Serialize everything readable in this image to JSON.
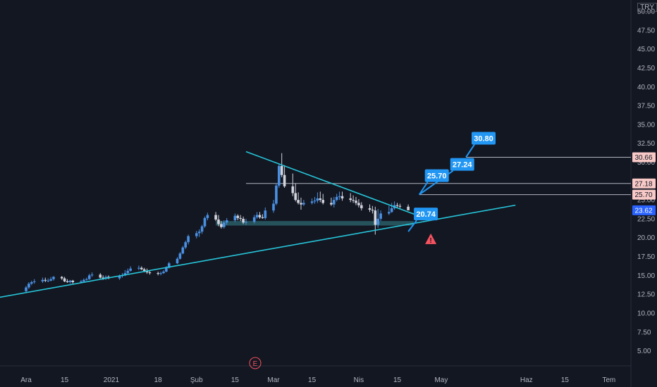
{
  "currency": "TRY",
  "colors": {
    "background": "#131722",
    "up": "#4a90e2",
    "down": "#d1d4dc",
    "trendline": "#26c6da",
    "support_zone": "#2a5d66",
    "level_line": "#b2b5be",
    "callout": "#2196f3",
    "warning": "#f7525f",
    "current_price": "#2962ff",
    "level_tag": "#f8c9c6",
    "earnings": "#f7525f"
  },
  "chart_data": {
    "type": "candlestick",
    "y_axis": {
      "ticks": [
        "50.00",
        "47.50",
        "45.00",
        "42.50",
        "40.00",
        "37.50",
        "35.00",
        "32.50",
        "30.00",
        "27.50",
        "25.00",
        "22.50",
        "20.00",
        "17.50",
        "15.00",
        "12.50",
        "10.00",
        "7.50",
        "5.00"
      ],
      "range": [
        3.0,
        51.5
      ]
    },
    "x_axis": {
      "ticks": [
        "Ara",
        "15",
        "2021",
        "18",
        "Şub",
        "15",
        "Mar",
        "15",
        "Nis",
        "15",
        "May",
        "Haz",
        "15",
        "Tem"
      ]
    },
    "series": {
      "dates": [
        "2020-12-01",
        "2020-12-02",
        "2020-12-03",
        "2020-12-04",
        "2020-12-07",
        "2020-12-08",
        "2020-12-09",
        "2020-12-10",
        "2020-12-11",
        "2020-12-14",
        "2020-12-15",
        "2020-12-16",
        "2020-12-17",
        "2020-12-18",
        "2020-12-21",
        "2020-12-22",
        "2020-12-23",
        "2020-12-24",
        "2020-12-25",
        "2020-12-28",
        "2020-12-29",
        "2020-12-30",
        "2020-12-31",
        "2021-01-04",
        "2021-01-05",
        "2021-01-06",
        "2021-01-07",
        "2021-01-08",
        "2021-01-11",
        "2021-01-12",
        "2021-01-13",
        "2021-01-14",
        "2021-01-15",
        "2021-01-18",
        "2021-01-19",
        "2021-01-20",
        "2021-01-21",
        "2021-01-22",
        "2021-01-25",
        "2021-01-26",
        "2021-01-27",
        "2021-01-28",
        "2021-01-29",
        "2021-02-01",
        "2021-02-02",
        "2021-02-03",
        "2021-02-04",
        "2021-02-05",
        "2021-02-08",
        "2021-02-09",
        "2021-02-10",
        "2021-02-11",
        "2021-02-12",
        "2021-02-15",
        "2021-02-16",
        "2021-02-17",
        "2021-02-18",
        "2021-02-19",
        "2021-02-22",
        "2021-02-23",
        "2021-02-24",
        "2021-02-25",
        "2021-02-26",
        "2021-03-01",
        "2021-03-02",
        "2021-03-03",
        "2021-03-04",
        "2021-03-05",
        "2021-03-08",
        "2021-03-09",
        "2021-03-10",
        "2021-03-11",
        "2021-03-12",
        "2021-03-15",
        "2021-03-16",
        "2021-03-17",
        "2021-03-18",
        "2021-03-19",
        "2021-03-22",
        "2021-03-23",
        "2021-03-24",
        "2021-03-25",
        "2021-03-26",
        "2021-03-29",
        "2021-03-30",
        "2021-03-31",
        "2021-04-01",
        "2021-04-02",
        "2021-04-05",
        "2021-04-06",
        "2021-04-07",
        "2021-04-08",
        "2021-04-09",
        "2021-04-12",
        "2021-04-13",
        "2021-04-14",
        "2021-04-15",
        "2021-04-16",
        "2021-04-19"
      ],
      "open": [
        12.9,
        13.4,
        13.9,
        14.1,
        14.2,
        14.4,
        14.3,
        14.3,
        14.5,
        14.8,
        14.6,
        14.2,
        14.1,
        14.3,
        14.1,
        14.2,
        14.4,
        14.5,
        15.0,
        15.1,
        14.7,
        14.6,
        14.8,
        14.6,
        14.9,
        15.0,
        15.3,
        15.6,
        15.9,
        16.0,
        15.8,
        15.6,
        15.4,
        15.3,
        15.2,
        15.3,
        15.5,
        16.0,
        16.6,
        17.2,
        17.9,
        18.7,
        19.4,
        20.2,
        20.6,
        20.8,
        21.5,
        22.6,
        23.0,
        22.4,
        21.8,
        21.4,
        22.0,
        22.3,
        22.9,
        22.6,
        22.5,
        22.0,
        22.1,
        22.7,
        23.0,
        22.7,
        22.6,
        23.6,
        24.5,
        26.9,
        29.5,
        28.3,
        26.8,
        25.9,
        25.0,
        24.6,
        24.4,
        24.6,
        24.8,
        24.9,
        25.2,
        25.0,
        24.6,
        24.4,
        25.0,
        25.4,
        25.5,
        25.2,
        25.0,
        24.9,
        24.6,
        24.3,
        23.9,
        23.7,
        23.6,
        21.7,
        22.5,
        23.2,
        23.4,
        23.9,
        24.3,
        24.2,
        24.1
      ],
      "high": [
        13.6,
        14.1,
        14.3,
        14.5,
        14.7,
        14.7,
        14.6,
        14.8,
        14.9,
        14.9,
        14.8,
        14.5,
        14.4,
        14.4,
        14.4,
        14.6,
        14.7,
        15.2,
        15.4,
        15.3,
        15.0,
        15.0,
        15.0,
        15.1,
        15.3,
        15.7,
        15.9,
        16.2,
        16.3,
        16.2,
        16.0,
        15.9,
        15.6,
        15.5,
        15.5,
        15.7,
        16.2,
        16.8,
        17.4,
        18.1,
        18.9,
        19.6,
        20.4,
        20.9,
        21.1,
        21.7,
        22.8,
        23.3,
        23.4,
        23.0,
        22.2,
        22.3,
        22.6,
        23.2,
        23.1,
        23.0,
        22.8,
        22.5,
        23.0,
        23.4,
        23.4,
        23.1,
        24.0,
        25.0,
        27.2,
        29.8,
        31.2,
        29.6,
        28.5,
        27.2,
        26.0,
        25.3,
        25.0,
        25.2,
        25.4,
        26.0,
        26.1,
        25.8,
        25.3,
        25.4,
        25.8,
        26.1,
        26.1,
        25.9,
        25.6,
        25.4,
        25.1,
        24.7,
        24.4,
        24.2,
        24.1,
        23.8,
        23.6,
        24.2,
        24.6,
        24.8,
        24.6,
        24.5,
        24.4
      ],
      "low": [
        12.7,
        13.2,
        13.7,
        13.9,
        14.0,
        14.1,
        14.1,
        14.2,
        14.3,
        14.4,
        14.1,
        14.0,
        13.9,
        13.9,
        14.0,
        14.1,
        14.3,
        14.4,
        14.8,
        14.6,
        14.4,
        14.4,
        14.5,
        14.4,
        14.7,
        14.9,
        15.2,
        15.5,
        15.7,
        15.7,
        15.4,
        15.2,
        15.1,
        15.0,
        15.0,
        15.2,
        15.4,
        15.9,
        16.5,
        17.1,
        17.8,
        18.5,
        19.1,
        19.9,
        20.1,
        20.5,
        21.3,
        22.3,
        22.2,
        21.5,
        21.2,
        21.2,
        21.7,
        22.1,
        22.3,
        22.2,
        21.8,
        21.7,
        21.9,
        22.5,
        22.5,
        22.5,
        22.4,
        23.3,
        24.3,
        26.6,
        28.0,
        26.6,
        25.5,
        24.8,
        24.4,
        23.7,
        24.2,
        24.4,
        24.5,
        24.6,
        24.7,
        24.4,
        24.2,
        24.0,
        24.8,
        25.0,
        24.9,
        24.7,
        24.6,
        24.3,
        24.0,
        23.6,
        23.4,
        23.2,
        20.4,
        21.3,
        22.2,
        23.0,
        23.3,
        23.7,
        24.0,
        23.9,
        23.8
      ],
      "close": [
        13.4,
        13.9,
        14.1,
        14.2,
        14.4,
        14.3,
        14.3,
        14.5,
        14.8,
        14.6,
        14.2,
        14.1,
        14.3,
        14.1,
        14.2,
        14.4,
        14.5,
        15.0,
        15.1,
        14.7,
        14.6,
        14.8,
        14.6,
        14.9,
        15.0,
        15.3,
        15.6,
        15.9,
        16.0,
        15.8,
        15.6,
        15.4,
        15.3,
        15.2,
        15.3,
        15.5,
        16.0,
        16.6,
        17.2,
        17.9,
        18.7,
        19.4,
        20.2,
        20.6,
        20.8,
        21.5,
        22.6,
        23.0,
        22.4,
        21.8,
        21.4,
        22.0,
        22.3,
        22.9,
        22.6,
        22.5,
        22.0,
        22.1,
        22.7,
        23.0,
        22.7,
        22.6,
        23.6,
        24.5,
        26.9,
        29.5,
        28.3,
        26.8,
        25.9,
        25.0,
        24.6,
        24.4,
        24.6,
        24.8,
        24.9,
        25.2,
        25.0,
        24.6,
        24.4,
        25.0,
        25.4,
        25.5,
        25.2,
        25.0,
        24.9,
        24.6,
        24.3,
        23.9,
        23.7,
        23.6,
        21.7,
        22.5,
        23.2,
        23.4,
        23.9,
        24.3,
        24.2,
        24.1,
        23.62
      ]
    },
    "drawings": {
      "ascending_trendline": {
        "from": {
          "date": "2020-11-20",
          "price": 12.0
        },
        "to": {
          "date": "2021-05-28",
          "price": 24.3
        }
      },
      "descending_trendline": {
        "from": {
          "date": "2021-02-19",
          "price": 31.4
        },
        "to": {
          "date": "2021-04-22",
          "price": 23.0
        }
      },
      "support_zone": {
        "from_date": "2021-02-08",
        "to_date": "2021-04-21",
        "low": 21.6,
        "high": 22.2
      },
      "levels": [
        {
          "price": 30.66,
          "from_date": "2021-05-10",
          "label": "30.66"
        },
        {
          "price": 27.18,
          "from_date": "2021-02-19",
          "label": "27.18"
        },
        {
          "price": 25.7,
          "from_date": "2021-04-23",
          "label": "25.70"
        }
      ],
      "callouts": [
        {
          "text": "30.80",
          "date": "2021-05-10",
          "price": 30.66
        },
        {
          "text": "27.24",
          "date": "2021-04-23",
          "price": 25.7
        },
        {
          "text": "25.70",
          "date": "2021-04-23",
          "price": 25.7
        },
        {
          "text": "20.74",
          "date": "2021-04-19",
          "price": 20.8
        }
      ],
      "warning": {
        "date": "2021-04-19",
        "price": 19.8
      },
      "earnings_marker": {
        "date": "2021-02-19",
        "label": "E"
      }
    },
    "current_price": {
      "value": "23.62"
    }
  }
}
